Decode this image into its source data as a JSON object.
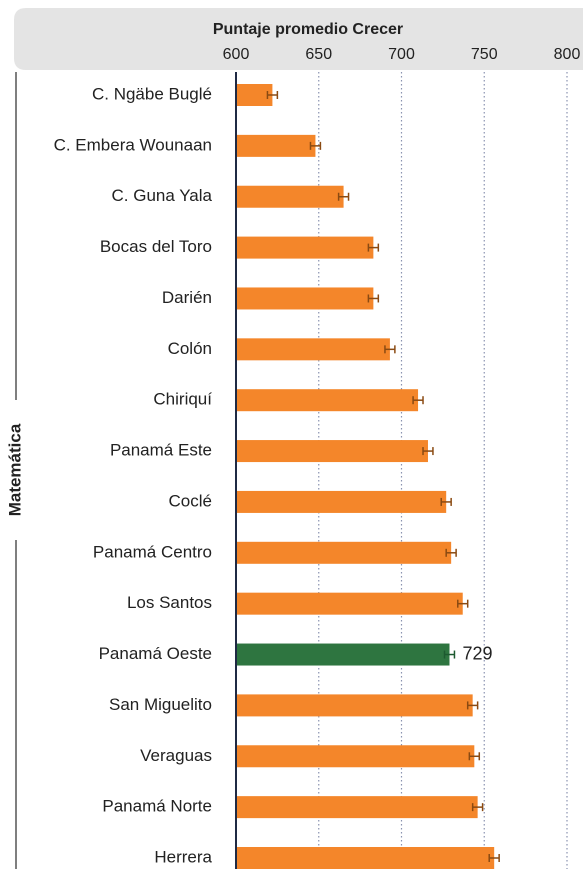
{
  "chart_data": {
    "type": "bar",
    "orientation": "horizontal",
    "title": "Puntaje promedio Crecer",
    "y_label": "Matemática",
    "categories": [
      "C. Ngäbe Buglé",
      "C. Embera Wounaan",
      "C. Guna Yala",
      "Bocas del Toro",
      "Darién",
      "Colón",
      "Chiriquí",
      "Panamá Este",
      "Coclé",
      "Panamá Centro",
      "Los Santos",
      "Panamá Oeste",
      "San Miguelito",
      "Veraguas",
      "Panamá Norte",
      "Herrera"
    ],
    "values": [
      622,
      648,
      665,
      683,
      683,
      693,
      710,
      716,
      727,
      730,
      737,
      729,
      743,
      744,
      746,
      756
    ],
    "errors": [
      3,
      3,
      3,
      3,
      3,
      3,
      3,
      3,
      3,
      3,
      3,
      3,
      3,
      3,
      3,
      3
    ],
    "colors": [
      "#f4862a",
      "#f4862a",
      "#f4862a",
      "#f4862a",
      "#f4862a",
      "#f4862a",
      "#f4862a",
      "#f4862a",
      "#f4862a",
      "#f4862a",
      "#f4862a",
      "#2e7540",
      "#f4862a",
      "#f4862a",
      "#f4862a",
      "#f4862a"
    ],
    "value_labels": [
      null,
      null,
      null,
      null,
      null,
      null,
      null,
      null,
      null,
      null,
      null,
      "729",
      null,
      null,
      null,
      null
    ],
    "xlim": [
      600,
      800
    ],
    "xticks": [
      600,
      650,
      700,
      750,
      800
    ],
    "grid": true
  }
}
